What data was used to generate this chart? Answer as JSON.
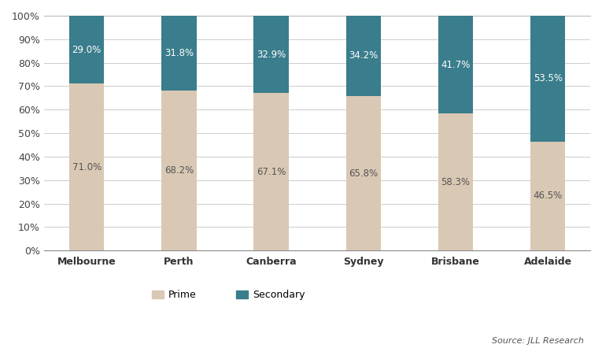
{
  "categories": [
    "Melbourne",
    "Perth",
    "Canberra",
    "Sydney",
    "Brisbane",
    "Adelaide"
  ],
  "prime": [
    71.0,
    68.2,
    67.1,
    65.8,
    58.3,
    46.5
  ],
  "secondary": [
    29.0,
    31.8,
    32.9,
    34.2,
    41.7,
    53.5
  ],
  "prime_color": "#d9c8b4",
  "secondary_color": "#3a7d8c",
  "prime_label": "Prime",
  "secondary_label": "Secondary",
  "source_text": "Source: JLL Research",
  "yticks": [
    0,
    10,
    20,
    30,
    40,
    50,
    60,
    70,
    80,
    90,
    100
  ],
  "ytick_labels": [
    "0%",
    "10%",
    "20%",
    "30%",
    "40%",
    "50%",
    "60%",
    "70%",
    "80%",
    "90%",
    "100%"
  ],
  "bar_width": 0.38,
  "background_color": "#ffffff",
  "grid_color": "#cccccc",
  "text_color_white": "#ffffff",
  "text_color_dark": "#555555",
  "label_fontsize": 8.5,
  "tick_fontsize": 9,
  "legend_fontsize": 9,
  "source_fontsize": 8,
  "top_border_color": "#bbbbbb",
  "bottom_border_color": "#888888"
}
